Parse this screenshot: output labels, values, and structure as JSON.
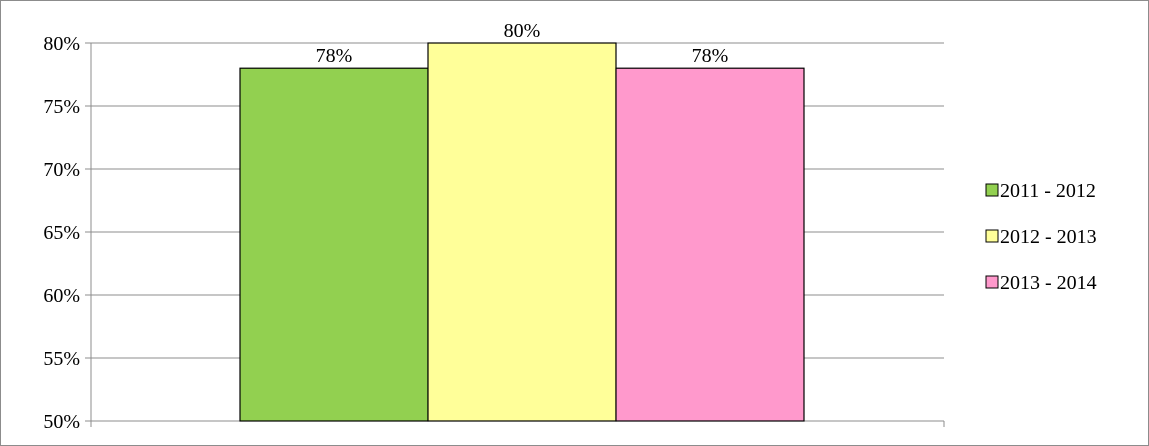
{
  "chart_data": {
    "type": "bar",
    "categories": [
      ""
    ],
    "series": [
      {
        "name": "2011 - 2012",
        "values": [
          78
        ],
        "label": "78%",
        "color": "#92d050"
      },
      {
        "name": "2012 - 2013",
        "values": [
          80
        ],
        "label": "80%",
        "color": "#ffff99"
      },
      {
        "name": "2013 - 2014",
        "values": [
          78
        ],
        "label": "78%",
        "color": "#ff99cc"
      }
    ],
    "title": "",
    "xlabel": "",
    "ylabel": "",
    "ylim": [
      50,
      80
    ],
    "yticks": [
      "50%",
      "55%",
      "60%",
      "65%",
      "70%",
      "75%",
      "80%"
    ],
    "grid": true,
    "legend_position": "right"
  }
}
